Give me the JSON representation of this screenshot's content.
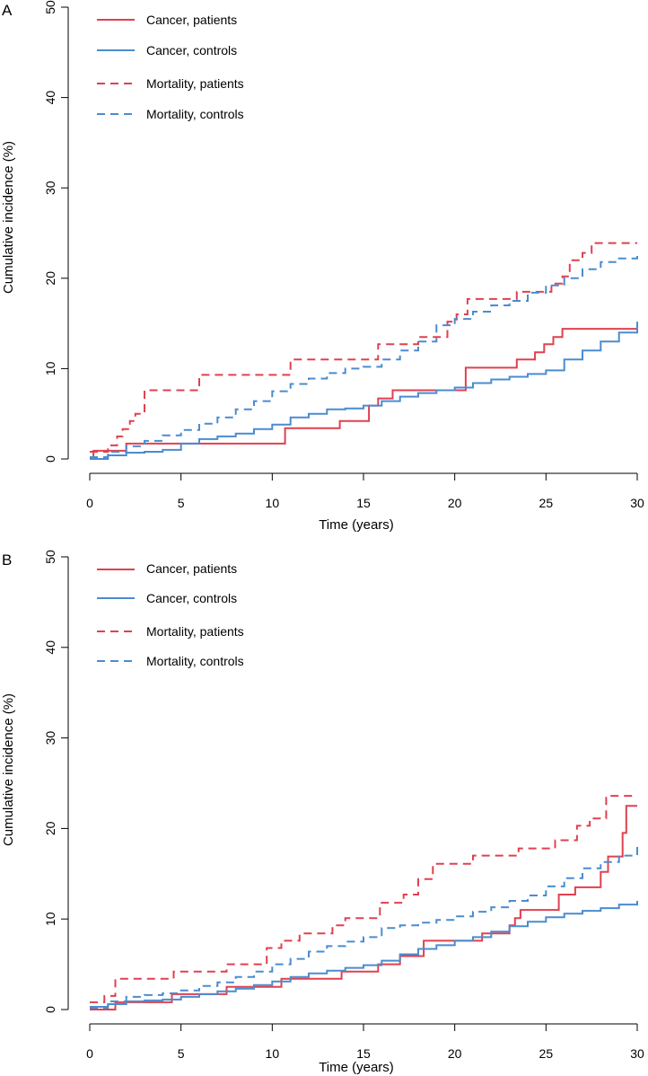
{
  "chart_data": [
    {
      "type": "line",
      "panel_label": "A",
      "xlabel": "Time (years)",
      "ylabel": "Cumulative incidence (%)",
      "xlim": [
        0,
        30
      ],
      "ylim": [
        0,
        50
      ],
      "xticks": [
        0,
        5,
        10,
        15,
        20,
        25,
        30
      ],
      "yticks": [
        0,
        10,
        20,
        30,
        40,
        50
      ],
      "legend": {
        "position": "top-left"
      },
      "series": [
        {
          "name": "Cancer, patients",
          "color": "#e04050",
          "dash": "solid",
          "x": [
            0,
            0.2,
            1.0,
            2.0,
            2.2,
            10.3,
            10.7,
            13.7,
            15.3,
            15.8,
            16.6,
            20.6,
            23.4,
            24.4,
            24.9,
            25.4,
            25.9,
            30
          ],
          "y": [
            0,
            0.9,
            0.9,
            1.7,
            1.7,
            1.7,
            3.4,
            4.2,
            5.9,
            6.7,
            7.6,
            10.1,
            11.0,
            11.8,
            12.7,
            13.5,
            14.4,
            14.4
          ]
        },
        {
          "name": "Cancer, controls",
          "color": "#4a8cd0",
          "dash": "solid",
          "x": [
            0,
            1,
            2,
            3,
            4,
            5,
            6,
            7,
            8,
            9,
            10,
            11,
            12,
            13,
            14,
            15,
            16,
            17,
            18,
            19,
            20,
            21,
            22,
            23,
            24,
            25,
            26,
            27,
            28,
            29,
            30
          ],
          "y": [
            0,
            0.4,
            0.7,
            0.8,
            1.0,
            1.7,
            2.2,
            2.5,
            2.8,
            3.3,
            3.8,
            4.6,
            5.0,
            5.5,
            5.6,
            5.9,
            6.4,
            6.9,
            7.3,
            7.6,
            7.9,
            8.4,
            8.8,
            9.1,
            9.4,
            9.8,
            11.0,
            12.0,
            13.0,
            14.0,
            15.2
          ]
        },
        {
          "name": "Mortality, patients",
          "color": "#e04050",
          "dash": "dashed",
          "x": [
            0,
            0.5,
            1.0,
            1.5,
            1.8,
            2.2,
            2.5,
            3.0,
            5.8,
            6.0,
            10.8,
            11.0,
            15.5,
            15.8,
            17.6,
            18.0,
            19.4,
            19.6,
            20.1,
            20.7,
            22.2,
            23.4,
            25.3,
            25.9,
            26.3,
            27.0,
            27.5,
            30
          ],
          "y": [
            0.8,
            0.8,
            1.5,
            2.5,
            3.3,
            4.2,
            5.0,
            7.6,
            7.6,
            9.3,
            9.3,
            11.0,
            11.0,
            12.7,
            12.7,
            13.5,
            13.5,
            15.2,
            16.0,
            17.7,
            17.7,
            18.5,
            19.4,
            20.2,
            22.0,
            22.8,
            23.9,
            23.9
          ]
        },
        {
          "name": "Mortality, controls",
          "color": "#4a8cd0",
          "dash": "dashed",
          "x": [
            0,
            1,
            2,
            3,
            4,
            5,
            6,
            7,
            8,
            9,
            10,
            11,
            12,
            13,
            14,
            15,
            16,
            17,
            18,
            19,
            20,
            21,
            22,
            23,
            24,
            25,
            26,
            27,
            28,
            29,
            30
          ],
          "y": [
            0.2,
            0.8,
            1.4,
            2.0,
            2.6,
            3.2,
            3.9,
            4.6,
            5.5,
            6.4,
            7.5,
            8.3,
            8.9,
            9.5,
            10.0,
            10.2,
            11.0,
            12.0,
            13.0,
            14.8,
            15.5,
            16.3,
            17.0,
            17.5,
            18.4,
            19.2,
            20.0,
            21.0,
            21.8,
            22.2,
            22.9
          ]
        }
      ]
    },
    {
      "type": "line",
      "panel_label": "B",
      "xlabel": "Time (years)",
      "ylabel": "Cumulative incidence (%)",
      "xlim": [
        0,
        30
      ],
      "ylim": [
        0,
        50
      ],
      "xticks": [
        0,
        5,
        10,
        15,
        20,
        25,
        30
      ],
      "yticks": [
        0,
        10,
        20,
        30,
        40,
        50
      ],
      "legend": {
        "position": "top-left"
      },
      "series": [
        {
          "name": "Cancer, patients",
          "color": "#e04050",
          "dash": "solid",
          "x": [
            0,
            1.4,
            4.5,
            7.5,
            10.5,
            13.8,
            15.8,
            17.0,
            18.3,
            20.7,
            21.5,
            22.5,
            23.0,
            23.3,
            23.6,
            25.7,
            26.6,
            28.0,
            28.4,
            28.8,
            29.2,
            29.4,
            30
          ],
          "y": [
            0,
            0.8,
            1.7,
            2.5,
            3.4,
            4.2,
            5.0,
            5.9,
            7.6,
            7.6,
            8.4,
            8.4,
            9.3,
            10.1,
            11.0,
            12.7,
            13.5,
            15.2,
            16.9,
            16.9,
            19.5,
            22.5,
            22.5
          ]
        },
        {
          "name": "Cancer, controls",
          "color": "#4a8cd0",
          "dash": "solid",
          "x": [
            0,
            1,
            2,
            3,
            4,
            5,
            6,
            7,
            8,
            9,
            10,
            11,
            12,
            13,
            14,
            15,
            16,
            17,
            18,
            19,
            20,
            21,
            22,
            23,
            24,
            25,
            26,
            27,
            28,
            29,
            30
          ],
          "y": [
            0.3,
            0.6,
            0.9,
            1.0,
            1.1,
            1.4,
            1.7,
            2.0,
            2.3,
            2.7,
            3.1,
            3.6,
            4.0,
            4.3,
            4.6,
            4.9,
            5.4,
            6.1,
            6.7,
            7.1,
            7.6,
            8.0,
            8.6,
            9.2,
            9.7,
            10.2,
            10.6,
            10.9,
            11.2,
            11.6,
            12.0
          ]
        },
        {
          "name": "Mortality, patients",
          "color": "#e04050",
          "dash": "dashed",
          "x": [
            0,
            0.8,
            1.4,
            4.6,
            5.8,
            7.5,
            9.7,
            10.5,
            11.5,
            12.0,
            13.3,
            14.0,
            15.9,
            16.6,
            17.2,
            18.0,
            18.8,
            20.0,
            21.0,
            23.5,
            25.5,
            26.7,
            27.4,
            28.3,
            30
          ],
          "y": [
            0.8,
            1.5,
            3.4,
            4.2,
            4.2,
            5.0,
            6.8,
            7.6,
            8.4,
            8.4,
            9.3,
            10.1,
            11.8,
            11.8,
            12.7,
            14.4,
            16.1,
            16.1,
            17.0,
            17.8,
            18.7,
            20.3,
            21.1,
            23.6,
            23.6
          ]
        },
        {
          "name": "Mortality, controls",
          "color": "#4a8cd0",
          "dash": "dashed",
          "x": [
            0,
            1,
            2,
            3,
            4,
            5,
            6,
            7,
            8,
            9,
            10,
            11,
            12,
            13,
            14,
            15,
            16,
            17,
            18,
            19,
            20,
            21,
            22,
            23,
            24,
            25,
            26,
            27,
            28,
            29,
            30
          ],
          "y": [
            0.2,
            0.9,
            1.4,
            1.6,
            1.8,
            2.1,
            2.6,
            3.0,
            3.6,
            4.2,
            5.0,
            5.6,
            6.4,
            7.0,
            7.5,
            8.0,
            9.0,
            9.3,
            9.6,
            9.9,
            10.3,
            10.8,
            11.3,
            12.0,
            12.6,
            13.6,
            14.5,
            15.6,
            16.3,
            17.0,
            18.0
          ]
        }
      ]
    }
  ]
}
